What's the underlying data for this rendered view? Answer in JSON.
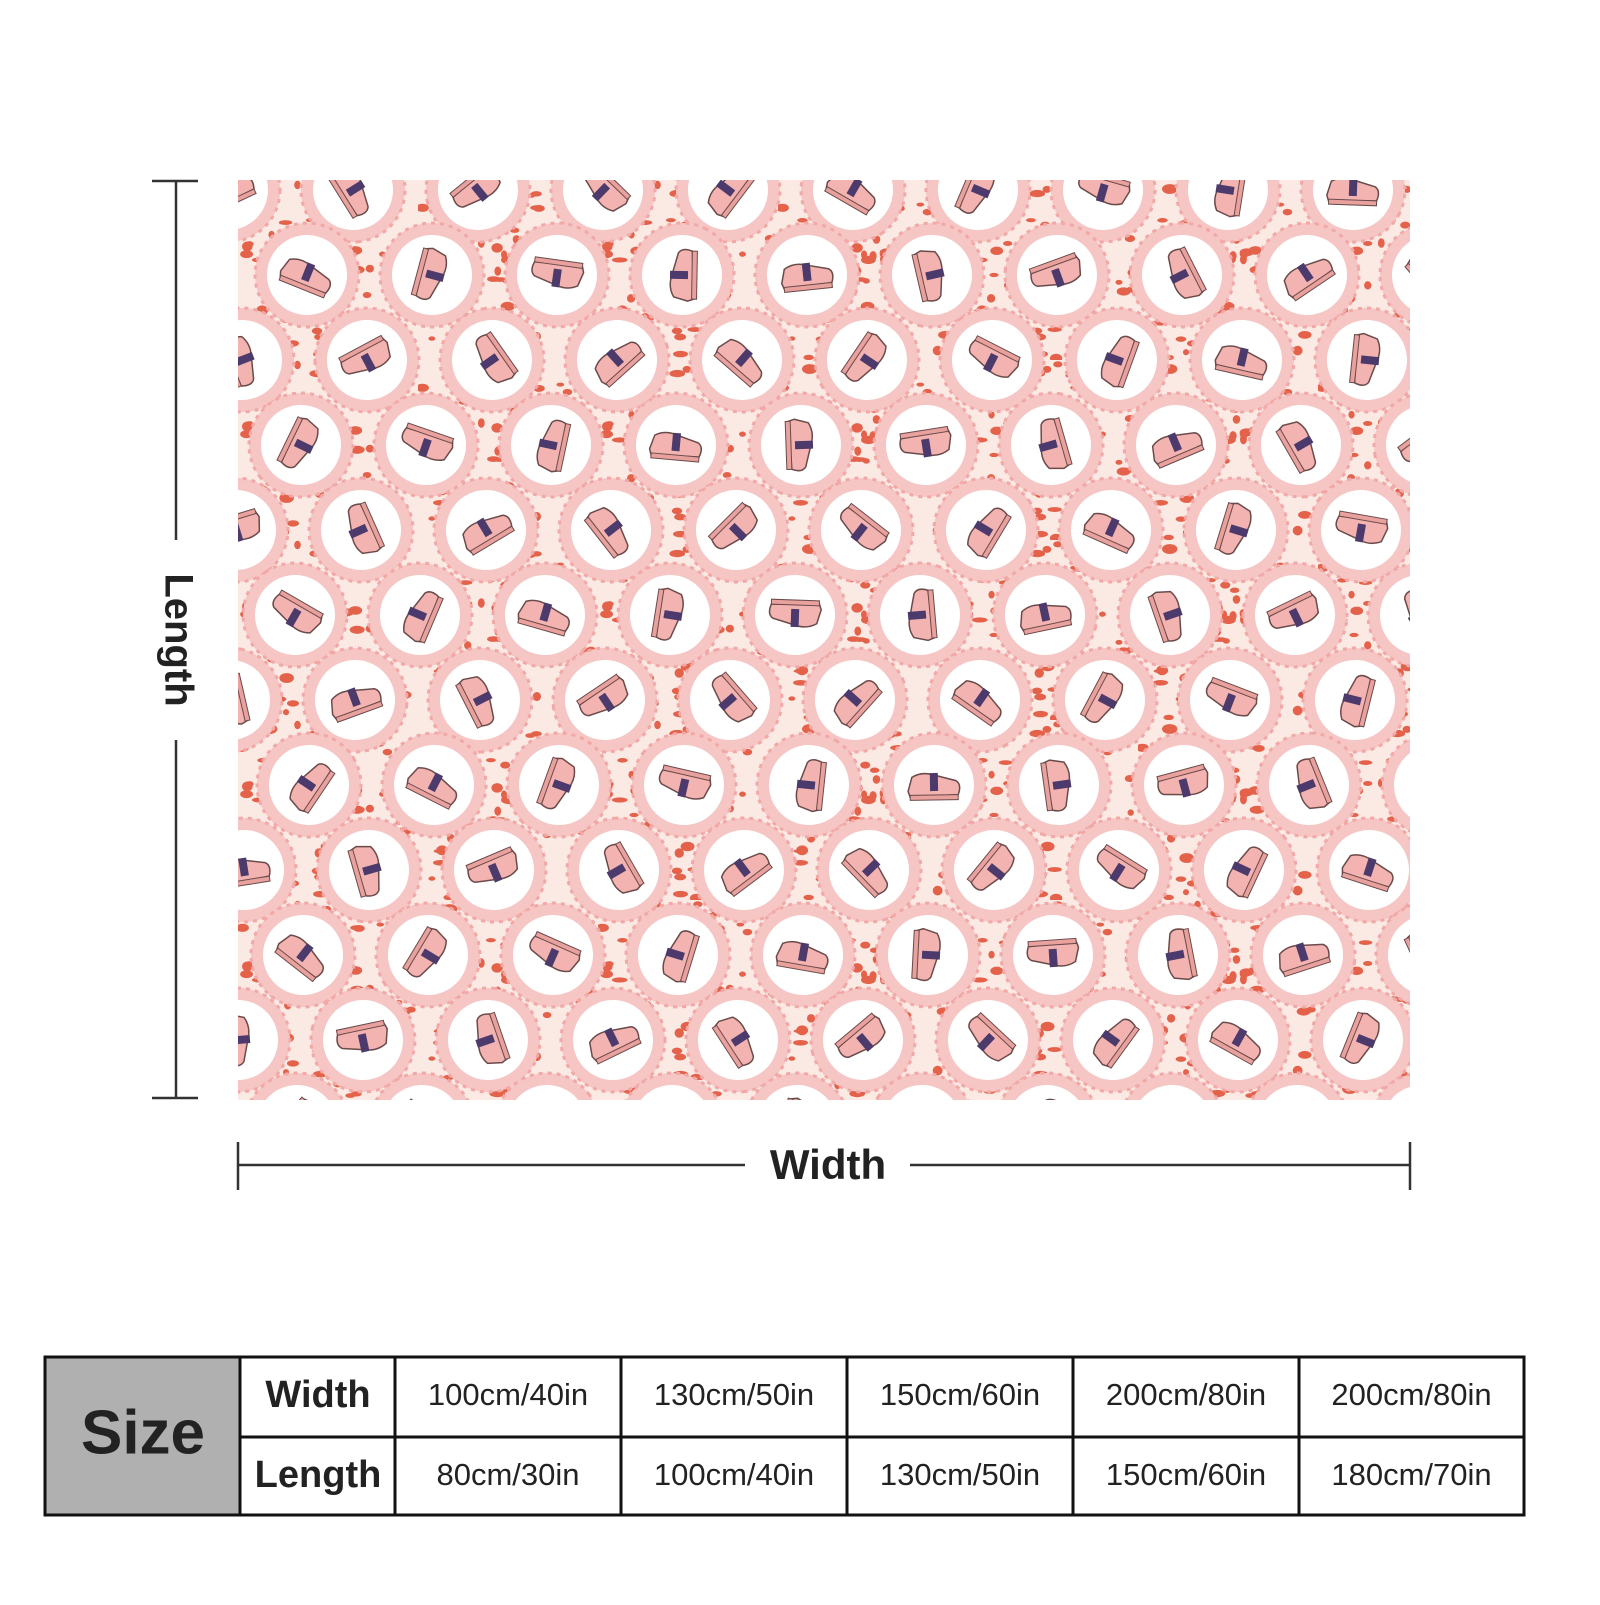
{
  "dimension_labels": {
    "length": "Length",
    "width": "Width"
  },
  "size_table": {
    "title": "Size",
    "row_headers": [
      "Width",
      "Length"
    ],
    "rows": [
      [
        "100cm/40in",
        "130cm/50in",
        "150cm/60in",
        "200cm/80in",
        "200cm/80in"
      ],
      [
        "80cm/30in",
        "100cm/40in",
        "130cm/50in",
        "150cm/60in",
        "180cm/70in"
      ]
    ]
  }
}
